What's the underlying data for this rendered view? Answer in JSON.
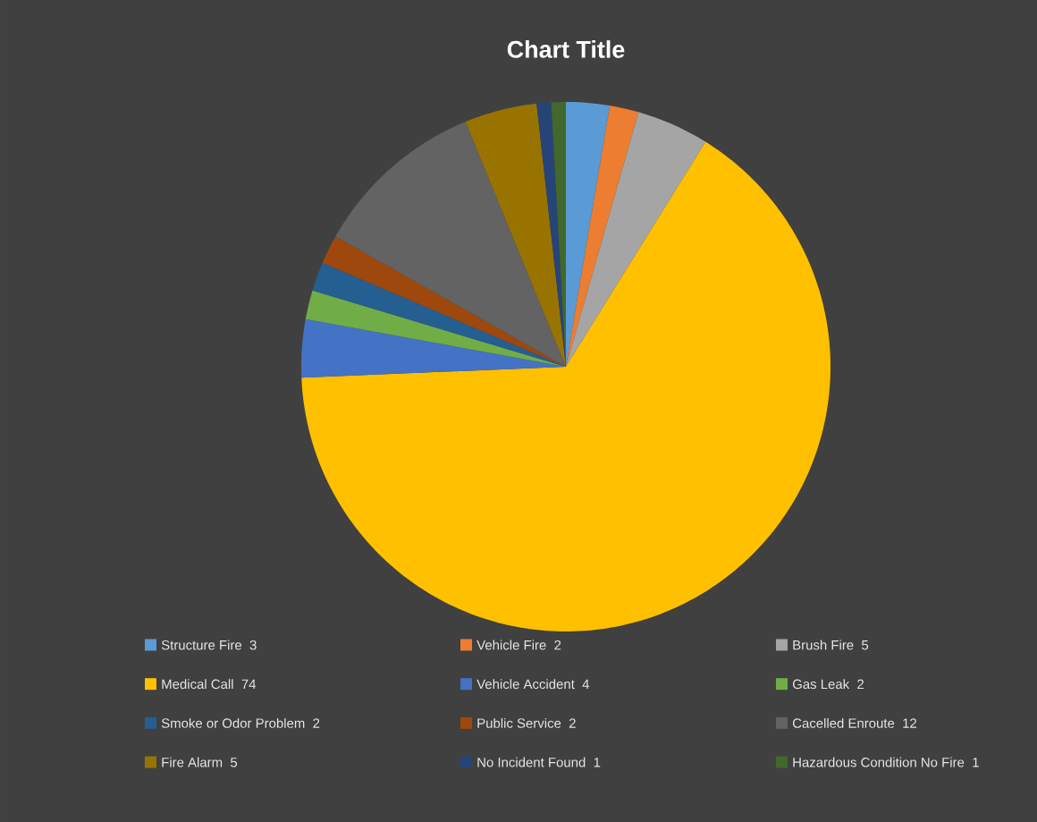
{
  "chart_data": {
    "type": "pie",
    "title": "Chart Title",
    "categories": [
      "Structure Fire",
      "Vehicle Fire",
      "Brush Fire",
      "Medical Call",
      "Vehicle Accident",
      "Gas Leak",
      "Smoke or Odor Problem",
      "Public Service",
      "Cacelled Enroute",
      "Fire Alarm",
      "No Incident Found",
      "Hazardous Condition No Fire"
    ],
    "values": [
      3,
      2,
      5,
      74,
      4,
      2,
      2,
      2,
      12,
      5,
      1,
      1
    ],
    "colors": [
      "#5b9bd5",
      "#ed7d31",
      "#a5a5a5",
      "#ffc000",
      "#4472c4",
      "#70ad47",
      "#255e91",
      "#9e480e",
      "#636363",
      "#997300",
      "#264478",
      "#43682b"
    ],
    "data_labels": true,
    "legend": "bottom"
  }
}
